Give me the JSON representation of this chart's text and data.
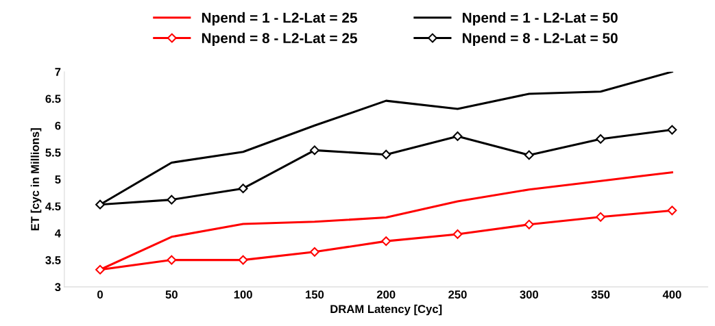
{
  "chart_data": {
    "type": "line",
    "xlabel": "DRAM Latency [Cyc]",
    "ylabel": "ET [cyc in Millions]",
    "categories": [
      "0",
      "50",
      "100",
      "150",
      "200",
      "250",
      "300",
      "350",
      "400"
    ],
    "series": [
      {
        "name": "Npend = 1 - L2-Lat = 25",
        "color": "#ff0000",
        "marker": "none",
        "values": [
          3.32,
          3.93,
          4.17,
          4.21,
          4.29,
          4.59,
          4.81,
          4.97,
          5.13
        ]
      },
      {
        "name": "Npend = 1 - L2-Lat = 50",
        "color": "#000000",
        "marker": "none",
        "values": [
          4.53,
          5.31,
          5.51,
          6.0,
          6.46,
          6.31,
          6.59,
          6.63,
          7.0
        ]
      },
      {
        "name": "Npend = 8 - L2-Lat = 25",
        "color": "#ff0000",
        "marker": "diamond",
        "values": [
          3.32,
          3.5,
          3.5,
          3.65,
          3.85,
          3.98,
          4.16,
          4.3,
          4.42
        ]
      },
      {
        "name": "Npend = 8 - L2-Lat = 50",
        "color": "#000000",
        "marker": "diamond",
        "values": [
          4.53,
          4.62,
          4.83,
          5.54,
          5.46,
          5.8,
          5.45,
          5.75,
          5.92
        ]
      }
    ],
    "ylim": [
      3,
      7
    ],
    "yticks": [
      3,
      3.5,
      4,
      4.5,
      5,
      5.5,
      6,
      6.5,
      7
    ],
    "grid": false,
    "legend": "top",
    "line_style": "solid"
  }
}
